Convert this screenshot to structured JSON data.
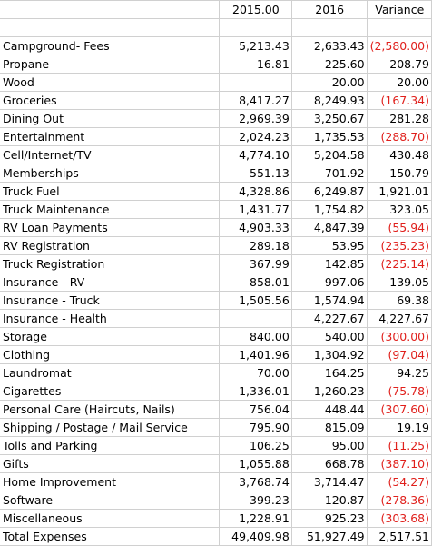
{
  "headers": [
    "",
    "2015.00",
    "2016",
    "Variance"
  ],
  "rows": [
    [
      "",
      "",
      "",
      ""
    ],
    [
      "Campground- Fees",
      "5,213.43",
      "2,633.43",
      "(2,580.00)"
    ],
    [
      "Propane",
      "16.81",
      "225.60",
      "208.79"
    ],
    [
      "Wood",
      "",
      "20.00",
      "20.00"
    ],
    [
      "Groceries",
      "8,417.27",
      "8,249.93",
      "(167.34)"
    ],
    [
      "Dining Out",
      "2,969.39",
      "3,250.67",
      "281.28"
    ],
    [
      "Entertainment",
      "2,024.23",
      "1,735.53",
      "(288.70)"
    ],
    [
      "Cell/Internet/TV",
      "4,774.10",
      "5,204.58",
      "430.48"
    ],
    [
      "Memberships",
      "551.13",
      "701.92",
      "150.79"
    ],
    [
      "Truck Fuel",
      "4,328.86",
      "6,249.87",
      "1,921.01"
    ],
    [
      "Truck Maintenance",
      "1,431.77",
      "1,754.82",
      "323.05"
    ],
    [
      "RV Loan Payments",
      "4,903.33",
      "4,847.39",
      "(55.94)"
    ],
    [
      "RV Registration",
      "289.18",
      "53.95",
      "(235.23)"
    ],
    [
      "Truck Registration",
      "367.99",
      "142.85",
      "(225.14)"
    ],
    [
      "Insurance - RV",
      "858.01",
      "997.06",
      "139.05"
    ],
    [
      "Insurance - Truck",
      "1,505.56",
      "1,574.94",
      "69.38"
    ],
    [
      "Insurance - Health",
      "",
      "4,227.67",
      "4,227.67"
    ],
    [
      "Storage",
      "840.00",
      "540.00",
      "(300.00)"
    ],
    [
      "Clothing",
      "1,401.96",
      "1,304.92",
      "(97.04)"
    ],
    [
      "Laundromat",
      "70.00",
      "164.25",
      "94.25"
    ],
    [
      "Cigarettes",
      "1,336.01",
      "1,260.23",
      "(75.78)"
    ],
    [
      "Personal Care (Haircuts, Nails)",
      "756.04",
      "448.44",
      "(307.60)"
    ],
    [
      "Shipping / Postage / Mail Service",
      "795.90",
      "815.09",
      "19.19"
    ],
    [
      "Tolls and Parking",
      "106.25",
      "95.00",
      "(11.25)"
    ],
    [
      "Gifts",
      "1,055.88",
      "668.78",
      "(387.10)"
    ],
    [
      "Home Improvement",
      "3,768.74",
      "3,714.47",
      "(54.27)"
    ],
    [
      "Software",
      "399.23",
      "120.87",
      "(278.36)"
    ],
    [
      "Miscellaneous",
      "1,228.91",
      "925.23",
      "(303.68)"
    ],
    [
      "Total Expenses",
      "49,409.98",
      "51,927.49",
      "2,517.51"
    ]
  ],
  "colors": {
    "negative": "#e0201c",
    "gridline": "#d0d0d0",
    "text": "#000000"
  }
}
